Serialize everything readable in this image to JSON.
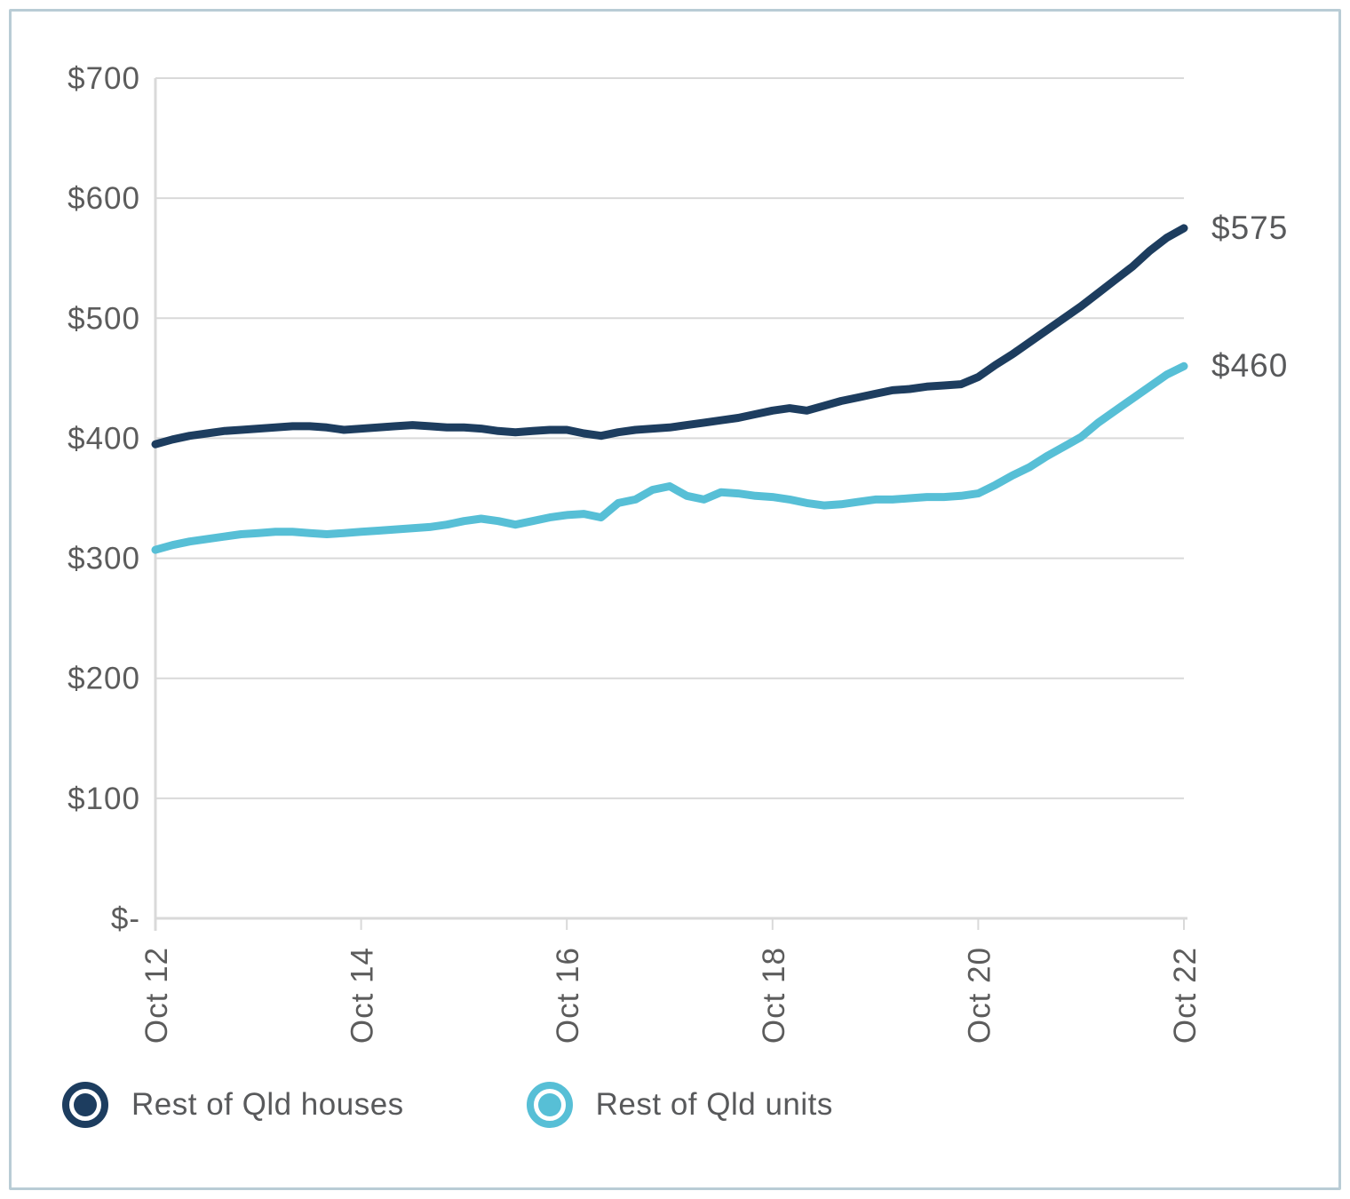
{
  "card": {
    "background": "#ffffff",
    "border_color": "#b9ccd5"
  },
  "chart_data": {
    "type": "line",
    "title": "",
    "xlabel": "",
    "ylabel": "",
    "x_unit": "months since Oct 2012, monthly series sampled every 2 months",
    "x": [
      0,
      2,
      4,
      6,
      8,
      10,
      12,
      14,
      16,
      18,
      20,
      22,
      24,
      26,
      28,
      30,
      32,
      34,
      36,
      38,
      40,
      42,
      44,
      46,
      48,
      50,
      52,
      54,
      56,
      58,
      60,
      62,
      64,
      66,
      68,
      70,
      72,
      74,
      76,
      78,
      80,
      82,
      84,
      86,
      88,
      90,
      92,
      94,
      96,
      98,
      100,
      102,
      104,
      106,
      108,
      110,
      112,
      114,
      116,
      118,
      120
    ],
    "xlim": [
      0,
      120
    ],
    "ylim": [
      0,
      700
    ],
    "grid": "horizontal",
    "x_tick_labels": [
      "Oct 12",
      "Oct 14",
      "Oct 16",
      "Oct 18",
      "Oct 20",
      "Oct 22"
    ],
    "x_tick_months": [
      0,
      24,
      48,
      72,
      96,
      120
    ],
    "y_tick_labels": [
      "$700",
      "$600",
      "$500",
      "$400",
      "$300",
      "$200",
      "$100",
      "$-"
    ],
    "y_tick_values": [
      700,
      600,
      500,
      400,
      300,
      200,
      100,
      0
    ],
    "series": [
      {
        "name": "Rest of Qld houses",
        "color": "#1d3d5f",
        "end_label": "$575",
        "values": [
          395,
          399,
          402,
          404,
          406,
          407,
          408,
          409,
          410,
          410,
          409,
          407,
          408,
          409,
          410,
          411,
          410,
          409,
          409,
          408,
          406,
          405,
          406,
          407,
          407,
          404,
          402,
          405,
          407,
          408,
          409,
          411,
          413,
          415,
          417,
          420,
          423,
          425,
          423,
          427,
          431,
          434,
          437,
          440,
          441,
          443,
          444,
          445,
          451,
          461,
          470,
          480,
          490,
          500,
          510,
          521,
          532,
          543,
          556,
          567,
          575
        ]
      },
      {
        "name": "Rest of Qld units",
        "color": "#57bfd6",
        "end_label": "$460",
        "values": [
          307,
          311,
          314,
          316,
          318,
          320,
          321,
          322,
          322,
          321,
          320,
          321,
          322,
          323,
          324,
          325,
          326,
          328,
          331,
          333,
          331,
          328,
          331,
          334,
          336,
          337,
          334,
          346,
          349,
          357,
          360,
          352,
          349,
          355,
          354,
          352,
          351,
          349,
          346,
          344,
          345,
          347,
          349,
          349,
          350,
          351,
          351,
          352,
          354,
          361,
          369,
          376,
          385,
          393,
          401,
          413,
          423,
          433,
          443,
          453,
          460
        ]
      }
    ],
    "legend_position": "bottom-left",
    "gridline_color": "#d9d9d9",
    "axis_color": "#d9d9d9",
    "tick_label_color": "#5c5c5c"
  }
}
